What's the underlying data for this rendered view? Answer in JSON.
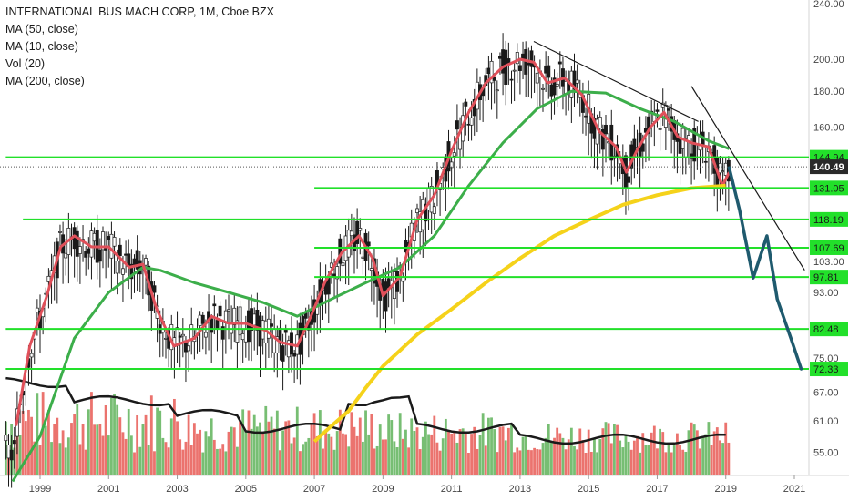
{
  "legend": {
    "title": "INTERNATIONAL BUS MACH CORP, 1M, Cboe BZX",
    "items": [
      "MA (50, close)",
      "MA (10, close)",
      "Vol (20)",
      "MA (200, close)"
    ]
  },
  "chart_data": {
    "type": "candlestick",
    "symbol": "INTERNATIONAL BUS MACH CORP",
    "interval": "1M",
    "exchange": "Cboe BZX",
    "x_tick_labels": [
      "1999",
      "2001",
      "2003",
      "2005",
      "2007",
      "2009",
      "2011",
      "2013",
      "2015",
      "2017",
      "2019",
      "2021"
    ],
    "y_tick_labels": [
      "240.00",
      "200.00",
      "180.00",
      "160.00",
      "144.94",
      "140.49",
      "131.05",
      "118.19",
      "107.69",
      "103.00",
      "97.81",
      "93.00",
      "82.48",
      "75.00",
      "72.33",
      "67.00",
      "61.00",
      "55.00"
    ],
    "y_scale": "log",
    "current_price": {
      "label": "140.49",
      "value": 140.49,
      "color": "#2a2a2a"
    },
    "horizontal_levels": [
      {
        "label": "144.94",
        "value": 144.94,
        "from_year": 1998.0
      },
      {
        "label": "131.05",
        "value": 131.05,
        "from_year": 2007.0
      },
      {
        "label": "118.19",
        "value": 118.19,
        "from_year": 1998.5
      },
      {
        "label": "107.69",
        "value": 107.69,
        "from_year": 2007.0
      },
      {
        "label": "97.81",
        "value": 97.81,
        "from_year": 2007.0
      },
      {
        "label": "82.48",
        "value": 82.48,
        "from_year": 1998.0
      },
      {
        "label": "72.33",
        "value": 72.33,
        "from_year": 1998.0
      }
    ],
    "trendlines": [
      {
        "points": [
          [
            2013.4,
            212
          ],
          [
            2018.2,
            163
          ]
        ]
      },
      {
        "points": [
          [
            2018.0,
            183
          ],
          [
            2021.3,
            100
          ]
        ]
      }
    ],
    "projection": {
      "color": "#1f5a6e",
      "points": [
        [
          2019.1,
          140
        ],
        [
          2019.4,
          122
        ],
        [
          2019.8,
          97.5
        ],
        [
          2020.2,
          112
        ],
        [
          2020.5,
          91
        ],
        [
          2020.9,
          80
        ],
        [
          2021.2,
          72.33
        ]
      ]
    },
    "series": [
      {
        "name": "MA (50, close)",
        "color": "#3cae4a",
        "points": [
          [
            1998.2,
            50
          ],
          [
            1999.0,
            58
          ],
          [
            2000.0,
            80
          ],
          [
            2001.0,
            93
          ],
          [
            2002.0,
            101
          ],
          [
            2002.5,
            100
          ],
          [
            2003.5,
            96
          ],
          [
            2004.5,
            93
          ],
          [
            2005.5,
            90
          ],
          [
            2006.5,
            86
          ],
          [
            2007.5,
            91
          ],
          [
            2008.5,
            96
          ],
          [
            2009.5,
            101
          ],
          [
            2010.5,
            112
          ],
          [
            2011.5,
            132
          ],
          [
            2012.5,
            152
          ],
          [
            2013.5,
            170
          ],
          [
            2014.5,
            180
          ],
          [
            2015.5,
            179
          ],
          [
            2016.5,
            170
          ],
          [
            2017.5,
            163
          ],
          [
            2018.5,
            153
          ],
          [
            2019.1,
            149
          ]
        ]
      },
      {
        "name": "MA (10, close)",
        "color": "#e0505a",
        "points": [
          [
            1998.3,
            60
          ],
          [
            1998.7,
            78
          ],
          [
            1999.2,
            92
          ],
          [
            1999.6,
            108
          ],
          [
            2000.0,
            112
          ],
          [
            2000.5,
            108
          ],
          [
            2001.0,
            108
          ],
          [
            2001.6,
            101
          ],
          [
            2002.0,
            102
          ],
          [
            2002.4,
            88
          ],
          [
            2002.9,
            78
          ],
          [
            2003.5,
            80
          ],
          [
            2004.0,
            86
          ],
          [
            2004.5,
            84
          ],
          [
            2005.0,
            84
          ],
          [
            2005.6,
            82
          ],
          [
            2006.0,
            79
          ],
          [
            2006.5,
            78
          ],
          [
            2006.9,
            86
          ],
          [
            2007.3,
            96
          ],
          [
            2007.8,
            106
          ],
          [
            2008.3,
            112
          ],
          [
            2008.7,
            104
          ],
          [
            2009.0,
            92
          ],
          [
            2009.5,
            98
          ],
          [
            2010.0,
            118
          ],
          [
            2010.5,
            128
          ],
          [
            2011.0,
            148
          ],
          [
            2011.5,
            168
          ],
          [
            2012.0,
            185
          ],
          [
            2012.5,
            195
          ],
          [
            2013.0,
            200
          ],
          [
            2013.4,
            198
          ],
          [
            2013.8,
            185
          ],
          [
            2014.3,
            188
          ],
          [
            2014.8,
            178
          ],
          [
            2015.3,
            158
          ],
          [
            2015.8,
            150
          ],
          [
            2016.1,
            138
          ],
          [
            2016.4,
            148
          ],
          [
            2016.8,
            160
          ],
          [
            2017.2,
            168
          ],
          [
            2017.6,
            155
          ],
          [
            2018.0,
            152
          ],
          [
            2018.5,
            150
          ],
          [
            2018.9,
            132
          ],
          [
            2019.1,
            138
          ]
        ]
      },
      {
        "name": "MA (200, close)",
        "color": "#f5d21a",
        "points": [
          [
            2007.0,
            57
          ],
          [
            2007.5,
            60
          ],
          [
            2008.0,
            63
          ],
          [
            2008.5,
            68
          ],
          [
            2009.0,
            73
          ],
          [
            2010.0,
            81
          ],
          [
            2011.0,
            88
          ],
          [
            2012.0,
            96
          ],
          [
            2013.0,
            104
          ],
          [
            2014.0,
            112
          ],
          [
            2015.0,
            118
          ],
          [
            2016.0,
            124
          ],
          [
            2017.0,
            128
          ],
          [
            2018.0,
            131
          ],
          [
            2019.0,
            132
          ]
        ]
      },
      {
        "name": "Vol (20)",
        "color": "#1a1a1a",
        "type": "volume-ma"
      }
    ]
  }
}
